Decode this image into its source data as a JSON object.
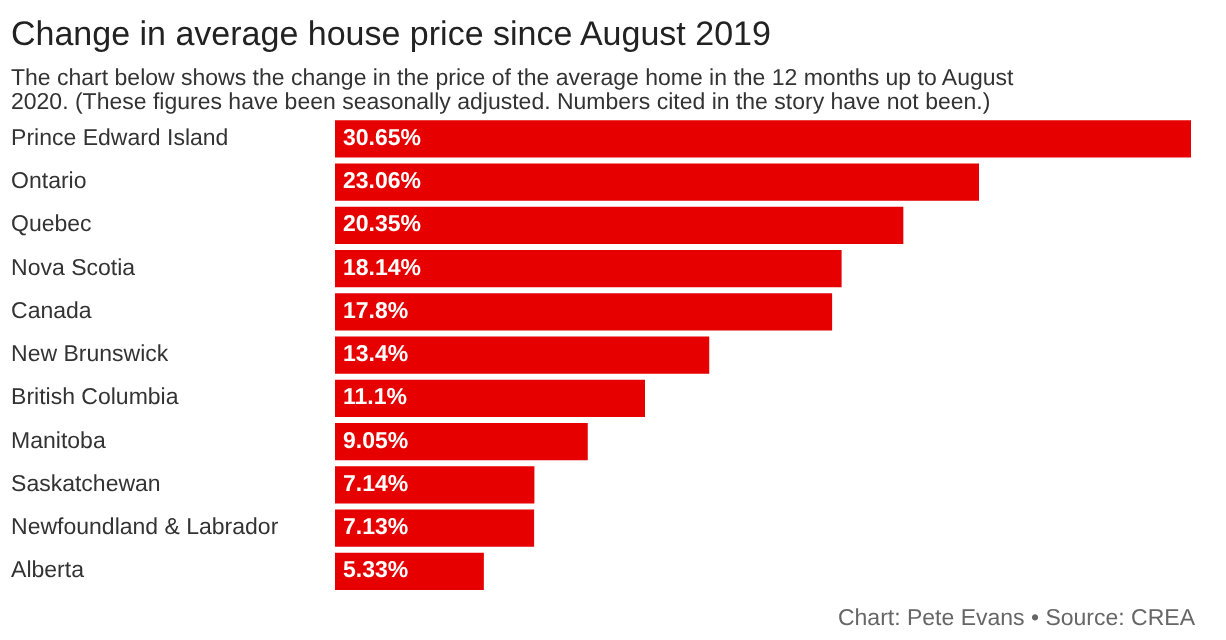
{
  "chart_data": {
    "type": "bar",
    "orientation": "horizontal",
    "title": "Change in average house price since August 2019",
    "subtitle": "The chart below shows the change in the price of the average home in the 12 months up to August 2020. (These figures have been seasonally adjusted. Numbers cited in the story have not been.)",
    "categories": [
      "Prince Edward Island",
      "Ontario",
      "Quebec",
      "Nova Scotia",
      "Canada",
      "New Brunswick",
      "British Columbia",
      "Manitoba",
      "Saskatchewan",
      "Newfoundland & Labrador",
      "Alberta"
    ],
    "values": [
      30.65,
      23.06,
      20.35,
      18.14,
      17.8,
      13.4,
      11.1,
      9.05,
      7.14,
      7.13,
      5.33
    ],
    "value_labels": [
      "30.65%",
      "23.06%",
      "20.35%",
      "18.14%",
      "17.8%",
      "13.4%",
      "11.1%",
      "9.05%",
      "7.14%",
      "7.13%",
      "5.33%"
    ],
    "color": "#e60000",
    "grid": false,
    "annotations": [
      "Chart: Pete Evans • Source: CREA"
    ]
  }
}
